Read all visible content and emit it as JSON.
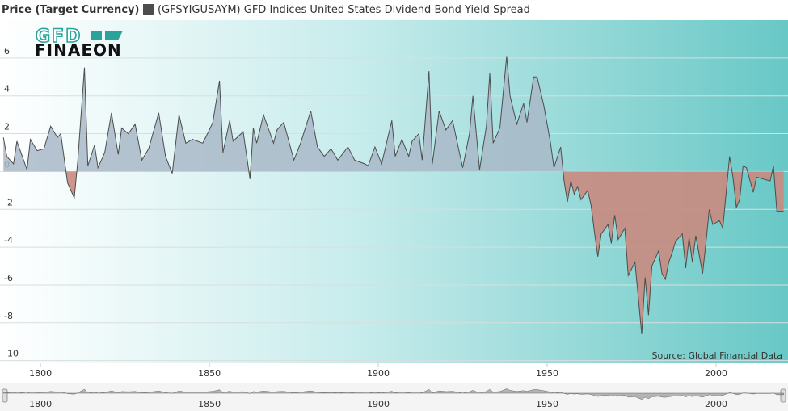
{
  "chart_data": {
    "type": "area",
    "axis_title": "Price (Target Currency)",
    "logo": {
      "top": "GFD",
      "bottom": "FINAEON"
    },
    "source": "Source: Global Financial Data",
    "series": [
      {
        "name": "(GFSYIGUSAYM) GFD Indices United States Dividend-Bond Yield Spread",
        "color": "#4d4d4d",
        "positive_fill": "#a9b8c8",
        "negative_fill": "#c98a80",
        "x": [
          1789,
          1790,
          1792,
          1793,
          1796,
          1797,
          1799,
          1801,
          1803,
          1805,
          1806,
          1808,
          1810,
          1811,
          1813,
          1814,
          1816,
          1817,
          1819,
          1821,
          1823,
          1824,
          1826,
          1828,
          1830,
          1832,
          1835,
          1837,
          1839,
          1841,
          1843,
          1845,
          1848,
          1850,
          1851,
          1853,
          1854,
          1856,
          1857,
          1860,
          1862,
          1863,
          1864,
          1866,
          1869,
          1870,
          1872,
          1875,
          1877,
          1880,
          1882,
          1884,
          1886,
          1888,
          1891,
          1893,
          1896,
          1897,
          1899,
          1901,
          1904,
          1905,
          1907,
          1909,
          1910,
          1912,
          1913,
          1915,
          1916,
          1918,
          1920,
          1922,
          1924,
          1925,
          1927,
          1928,
          1930,
          1932,
          1933,
          1934,
          1936,
          1938,
          1939,
          1941,
          1943,
          1944,
          1946,
          1947,
          1949,
          1951,
          1952,
          1954,
          1955,
          1956,
          1957,
          1958,
          1959,
          1960,
          1962,
          1963,
          1964,
          1965,
          1966,
          1968,
          1969,
          1970,
          1971,
          1973,
          1974,
          1976,
          1978,
          1979,
          1980,
          1981,
          1983,
          1984,
          1985,
          1986,
          1987,
          1988,
          1990,
          1991,
          1992,
          1993,
          1994,
          1996,
          1997,
          1998,
          1999,
          2001,
          2002,
          2004,
          2005,
          2006,
          2007,
          2008,
          2009,
          2011,
          2012,
          2014,
          2016,
          2017,
          2018,
          2020
        ],
        "values": [
          1.8,
          0.8,
          0.4,
          1.6,
          0.1,
          1.7,
          1.1,
          1.2,
          2.4,
          1.8,
          2.0,
          -0.6,
          -1.4,
          0.5,
          5.5,
          0.3,
          1.4,
          0.2,
          1.0,
          3.1,
          0.9,
          2.3,
          2.0,
          2.5,
          0.6,
          1.2,
          3.1,
          0.8,
          -0.1,
          3.0,
          1.5,
          1.7,
          1.5,
          2.2,
          2.6,
          4.8,
          1.0,
          2.7,
          1.6,
          2.1,
          -0.4,
          2.3,
          1.5,
          3.0,
          1.5,
          2.2,
          2.6,
          0.6,
          1.5,
          3.2,
          1.3,
          0.8,
          1.2,
          0.6,
          1.3,
          0.6,
          0.4,
          0.3,
          1.3,
          0.4,
          2.7,
          0.8,
          1.7,
          0.8,
          1.6,
          2.0,
          0.6,
          5.3,
          0.4,
          3.2,
          2.2,
          2.7,
          1.0,
          0.2,
          2.0,
          4.0,
          0.1,
          2.4,
          5.2,
          1.5,
          2.3,
          6.1,
          4.0,
          2.5,
          3.6,
          2.6,
          5.0,
          5.0,
          3.5,
          1.5,
          0.2,
          1.3,
          -0.5,
          -1.6,
          -0.5,
          -1.2,
          -0.8,
          -1.5,
          -1.0,
          -1.8,
          -3.2,
          -4.5,
          -3.3,
          -2.8,
          -3.8,
          -2.3,
          -3.6,
          -3.0,
          -5.5,
          -4.8,
          -8.6,
          -5.6,
          -7.6,
          -5.0,
          -4.2,
          -5.4,
          -5.7,
          -4.8,
          -4.3,
          -3.7,
          -3.3,
          -5.1,
          -3.5,
          -4.8,
          -3.4,
          -5.4,
          -3.8,
          -2.0,
          -2.8,
          -2.6,
          -3.0,
          0.8,
          -0.3,
          -1.9,
          -1.5,
          0.3,
          0.2,
          -1.1,
          -0.3,
          -0.4,
          -0.5,
          0.3,
          -2.1,
          -2.1
        ]
      }
    ],
    "xlim": [
      1788,
      2021.3
    ],
    "xticks": [
      1800,
      1850,
      1900,
      1950,
      2000
    ],
    "ylim": [
      -10.1,
      8
    ],
    "yticks": [
      6,
      4,
      2,
      0,
      -2,
      -4,
      -6,
      -8,
      -10
    ],
    "grid": true
  }
}
